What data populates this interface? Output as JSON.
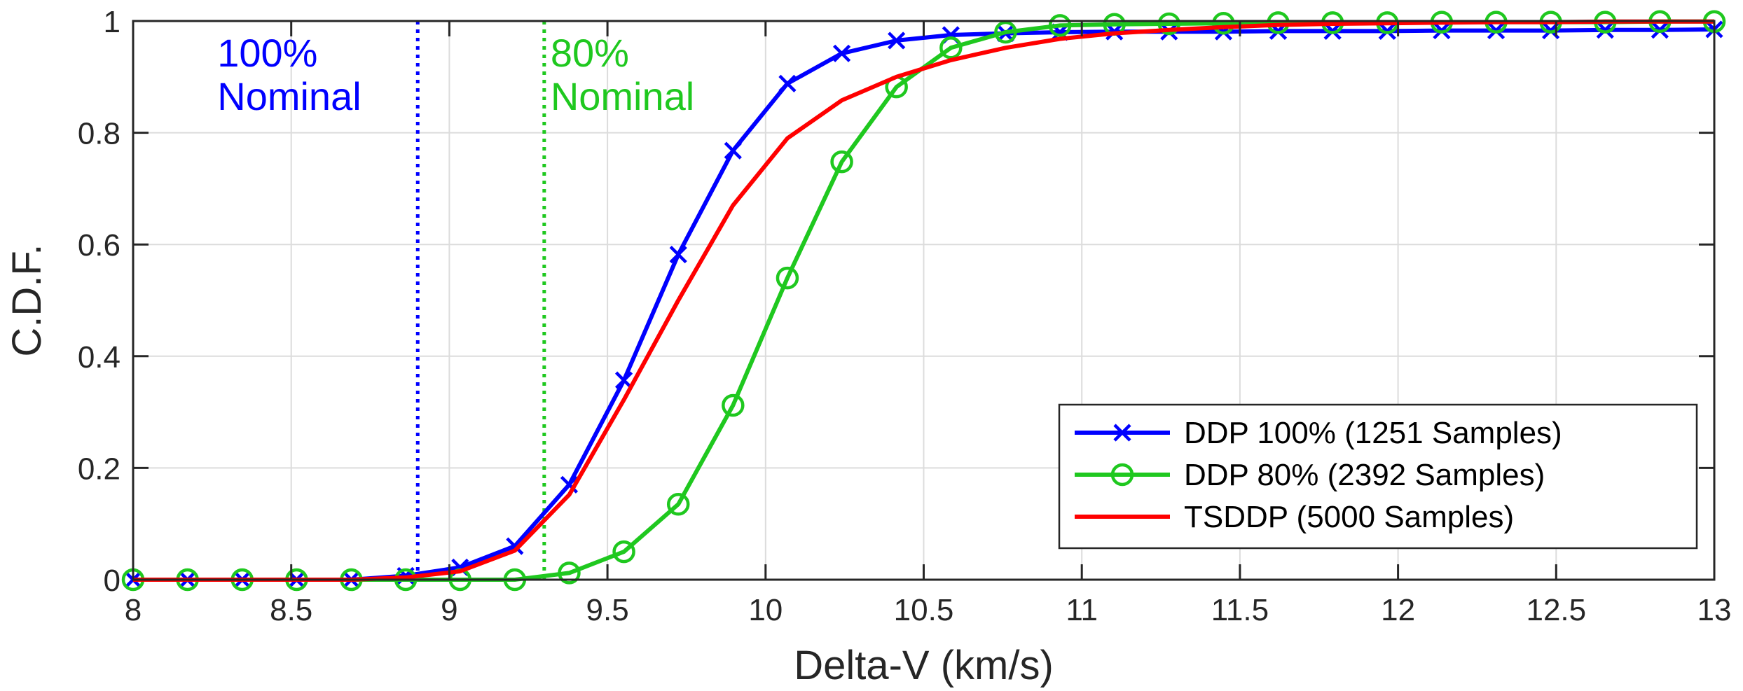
{
  "chart_data": {
    "type": "line",
    "title": "",
    "xlabel": "Delta-V (km/s)",
    "ylabel": "C.D.F.",
    "xlim": [
      8,
      13
    ],
    "ylim": [
      0,
      1
    ],
    "grid": true,
    "legend_position": "bottom-right",
    "x_ticks": [
      8,
      8.5,
      9,
      9.5,
      10,
      10.5,
      11,
      11.5,
      12,
      12.5,
      13
    ],
    "x_tick_labels": [
      "8",
      "8.5",
      "9",
      "9.5",
      "10",
      "10.5",
      "11",
      "11.5",
      "12",
      "12.5",
      "13"
    ],
    "y_ticks": [
      0,
      0.2,
      0.4,
      0.6,
      0.8,
      1
    ],
    "y_tick_labels": [
      "0",
      "0.2",
      "0.4",
      "0.6",
      "0.8",
      "1"
    ],
    "series": [
      {
        "name": "DDP 100% (1251 Samples)",
        "color": "#0000ff",
        "marker": "x",
        "x": [
          8.0,
          8.172,
          8.345,
          8.517,
          8.69,
          8.862,
          9.034,
          9.207,
          9.379,
          9.552,
          9.724,
          9.897,
          10.069,
          10.241,
          10.414,
          10.586,
          10.759,
          10.931,
          11.103,
          11.276,
          11.448,
          11.621,
          11.793,
          11.966,
          12.138,
          12.31,
          12.483,
          12.655,
          12.828,
          13.0
        ],
        "y": [
          0.0,
          0.0,
          0.0,
          0.0,
          0.0,
          0.007,
          0.022,
          0.06,
          0.17,
          0.357,
          0.582,
          0.768,
          0.888,
          0.942,
          0.965,
          0.975,
          0.978,
          0.98,
          0.981,
          0.981,
          0.981,
          0.982,
          0.982,
          0.982,
          0.983,
          0.983,
          0.983,
          0.984,
          0.984,
          0.985
        ]
      },
      {
        "name": "DDP 80% (2392 Samples)",
        "color": "#1fc81f",
        "marker": "o",
        "x": [
          8.0,
          8.172,
          8.345,
          8.517,
          8.69,
          8.862,
          9.034,
          9.207,
          9.379,
          9.552,
          9.724,
          9.897,
          10.069,
          10.241,
          10.414,
          10.586,
          10.759,
          10.931,
          11.103,
          11.276,
          11.448,
          11.621,
          11.793,
          11.966,
          12.138,
          12.31,
          12.483,
          12.655,
          12.828,
          13.0
        ],
        "y": [
          0.0,
          0.0,
          0.0,
          0.0,
          0.0,
          0.0,
          0.0,
          0.0,
          0.012,
          0.05,
          0.135,
          0.312,
          0.54,
          0.748,
          0.882,
          0.952,
          0.98,
          0.992,
          0.994,
          0.995,
          0.996,
          0.997,
          0.997,
          0.997,
          0.998,
          0.998,
          0.998,
          0.998,
          0.999,
          0.999
        ]
      },
      {
        "name": "TSDDP (5000 Samples)",
        "color": "#ff0000",
        "marker": "none",
        "x": [
          8.0,
          8.172,
          8.345,
          8.517,
          8.69,
          8.862,
          9.034,
          9.207,
          9.379,
          9.552,
          9.724,
          9.897,
          10.069,
          10.241,
          10.414,
          10.586,
          10.759,
          10.931,
          11.103,
          11.276,
          11.448,
          11.621,
          11.793,
          11.966,
          12.138,
          12.31,
          12.483,
          12.655,
          12.828,
          13.0
        ],
        "y": [
          0.0,
          0.0,
          0.0,
          0.0,
          0.0,
          0.004,
          0.015,
          0.052,
          0.152,
          0.322,
          0.5,
          0.67,
          0.79,
          0.858,
          0.9,
          0.93,
          0.952,
          0.968,
          0.978,
          0.984,
          0.989,
          0.993,
          0.995,
          0.996,
          0.997,
          0.998,
          0.998,
          0.999,
          0.999,
          0.999
        ]
      }
    ],
    "reference_lines": [
      {
        "x": 8.9,
        "color": "#0000ff",
        "style": "dotted",
        "label_line1": "100%",
        "label_line2": "Nominal"
      },
      {
        "x": 9.3,
        "color": "#1fc81f",
        "style": "dotted",
        "label_line1": "80%",
        "label_line2": "Nominal"
      }
    ]
  }
}
